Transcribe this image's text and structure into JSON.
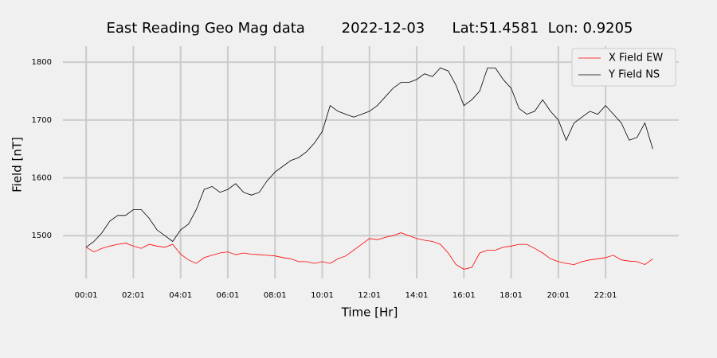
{
  "chart_data": {
    "type": "line",
    "title": "East Reading Geo Mag data        2022-12-03      Lat:51.4581  Lon: 0.9205",
    "xlabel": "Time  [Hr]",
    "ylabel": "Field  [nT]",
    "x": [
      1,
      21,
      41,
      61,
      81,
      101,
      121,
      141,
      161,
      181,
      201,
      221,
      241,
      261,
      281,
      301,
      321,
      341,
      361,
      381,
      401,
      421,
      441,
      461,
      481,
      501,
      521,
      541,
      561,
      581,
      601,
      621,
      641,
      661,
      681,
      701,
      721,
      741,
      761,
      781,
      801,
      821,
      841,
      861,
      881,
      901,
      921,
      941,
      961,
      981,
      1001,
      1021,
      1041,
      1061,
      1081,
      1101,
      1121,
      1141,
      1161,
      1181,
      1201,
      1221,
      1241,
      1261,
      1281,
      1301,
      1321,
      1341,
      1361,
      1381,
      1401,
      1421,
      1441
    ],
    "series": [
      {
        "name": "X Field EW",
        "color": "#ff0000",
        "values": [
          1480,
          1472,
          1478,
          1482,
          1485,
          1487,
          1482,
          1478,
          1485,
          1482,
          1480,
          1485,
          1468,
          1458,
          1452,
          1462,
          1466,
          1470,
          1472,
          1467,
          1470,
          1468,
          1467,
          1466,
          1465,
          1462,
          1460,
          1455,
          1455,
          1452,
          1455,
          1452,
          1460,
          1465,
          1475,
          1485,
          1495,
          1493,
          1497,
          1500,
          1505,
          1500,
          1495,
          1492,
          1490,
          1485,
          1470,
          1450,
          1442,
          1445,
          1470,
          1475,
          1475,
          1480,
          1482,
          1485,
          1485,
          1478,
          1470,
          1460,
          1455,
          1452,
          1450,
          1455,
          1458,
          1460,
          1462,
          1466,
          1458,
          1456,
          1455,
          1450,
          1460
        ]
      },
      {
        "name": "Y Field NS",
        "color": "#000000",
        "values": [
          1480,
          1490,
          1505,
          1525,
          1535,
          1535,
          1545,
          1545,
          1530,
          1510,
          1500,
          1490,
          1510,
          1520,
          1545,
          1580,
          1585,
          1575,
          1580,
          1590,
          1575,
          1570,
          1575,
          1595,
          1610,
          1620,
          1630,
          1635,
          1645,
          1660,
          1680,
          1725,
          1715,
          1710,
          1705,
          1710,
          1715,
          1725,
          1740,
          1755,
          1765,
          1765,
          1770,
          1780,
          1775,
          1790,
          1785,
          1760,
          1725,
          1735,
          1750,
          1790,
          1790,
          1770,
          1755,
          1720,
          1710,
          1715,
          1735,
          1715,
          1700,
          1665,
          1695,
          1705,
          1715,
          1710,
          1725,
          1710,
          1695,
          1665,
          1670,
          1695,
          1650
        ]
      }
    ],
    "xlim": [
      -58,
      1507
    ],
    "ylim": [
      1426,
      1825
    ],
    "xticks": [
      {
        "value": 1,
        "label": "00:01"
      },
      {
        "value": 121,
        "label": "02:01"
      },
      {
        "value": 241,
        "label": "04:01"
      },
      {
        "value": 361,
        "label": "06:01"
      },
      {
        "value": 481,
        "label": "08:01"
      },
      {
        "value": 601,
        "label": "10:01"
      },
      {
        "value": 721,
        "label": "12:01"
      },
      {
        "value": 841,
        "label": "14:01"
      },
      {
        "value": 961,
        "label": "16:01"
      },
      {
        "value": 1081,
        "label": "18:01"
      },
      {
        "value": 1201,
        "label": "20:01"
      },
      {
        "value": 1321,
        "label": "22:01"
      }
    ],
    "yticks": [
      1500,
      1600,
      1700,
      1800
    ],
    "grid": true,
    "legend": "upper right"
  }
}
